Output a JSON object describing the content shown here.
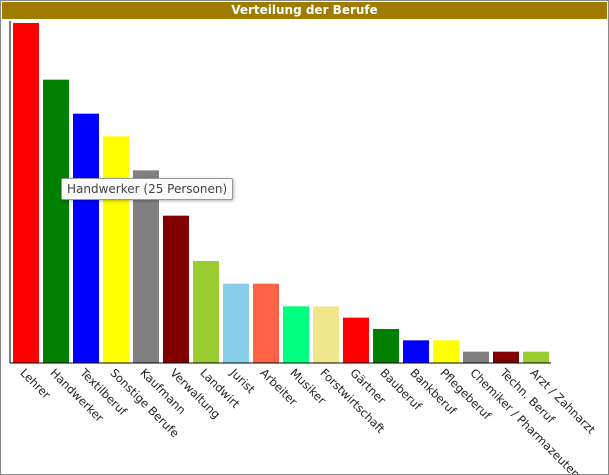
{
  "chart_data": {
    "type": "bar",
    "title": "Verteilung der Berufe",
    "categories": [
      "Lehrer",
      "Handwerker",
      "Textilberuf",
      "Sonstige Berufe",
      "Kaufmann",
      "Verwaltung",
      "Landwirt",
      "Jurist",
      "Arbeiter",
      "Musiker",
      "Forstwirtschaft",
      "Gärtner",
      "Bauberuf",
      "Bankberuf",
      "Pflegeberuf",
      "Chemiker / Pharmazeuten",
      "Techn. Beruf",
      "Arzt / Zahnarzt"
    ],
    "values": [
      30,
      25,
      22,
      20,
      17,
      13,
      9,
      7,
      7,
      5,
      5,
      4,
      3,
      2,
      2,
      1,
      1,
      1
    ],
    "colors": [
      "#ff0000",
      "#008000",
      "#0000ff",
      "#ffff00",
      "#808080",
      "#800000",
      "#9acd32",
      "#87ceeb",
      "#ff6347",
      "#00ff7f",
      "#f0e68c",
      "#ff0000",
      "#008000",
      "#0000ff",
      "#ffff00",
      "#808080",
      "#800000",
      "#9acd32"
    ],
    "ylim": [
      0,
      30
    ],
    "tooltip": "Handwerker (25 Personen)"
  }
}
